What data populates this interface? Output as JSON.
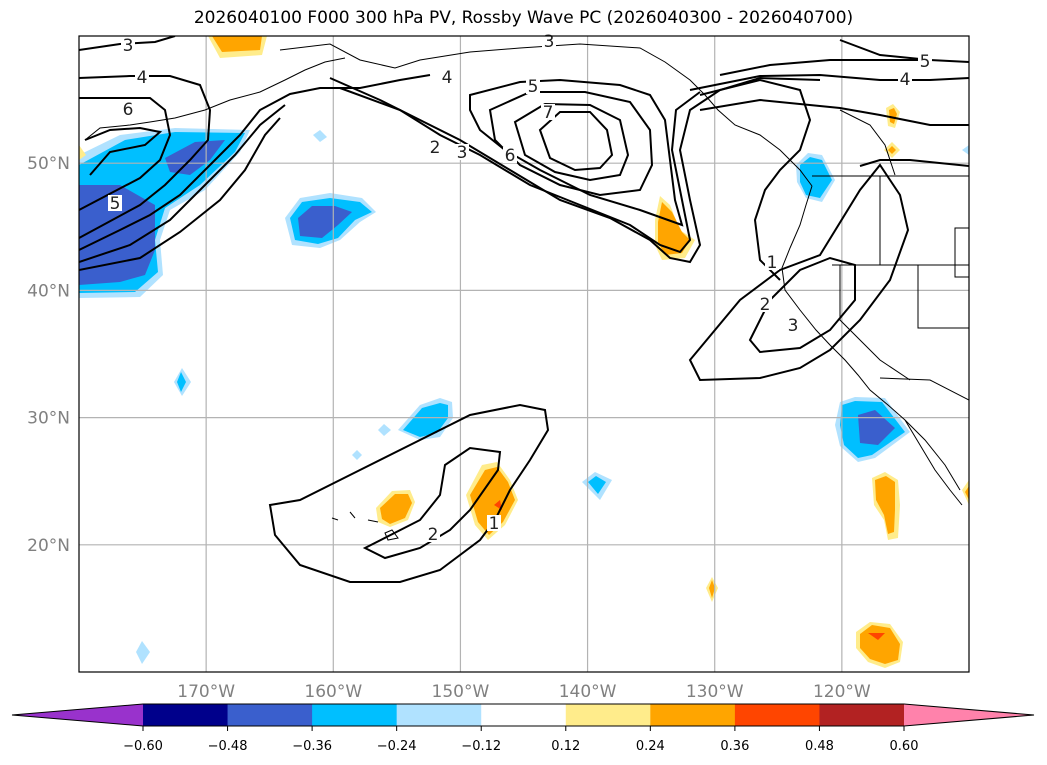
{
  "title": "2026040100 F000 300 hPa PV, Rossby Wave PC (2026040300 - 2026040700)",
  "chart_data": {
    "type": "heatmap",
    "title": "2026040100 F000 300 hPa PV, Rossby Wave PC (2026040300 - 2026040700)",
    "projection": "PlateCarree",
    "lon_range": [
      -180,
      -110
    ],
    "lat_range": [
      10,
      60
    ],
    "x_ticks": [
      {
        "value": -170,
        "label": "170°W"
      },
      {
        "value": -160,
        "label": "160°W"
      },
      {
        "value": -150,
        "label": "150°W"
      },
      {
        "value": -140,
        "label": "140°W"
      },
      {
        "value": -130,
        "label": "130°W"
      },
      {
        "value": -120,
        "label": "120°W"
      }
    ],
    "y_ticks": [
      {
        "value": 50,
        "label": "50°N"
      },
      {
        "value": 40,
        "label": "40°N"
      },
      {
        "value": 30,
        "label": "30°N"
      },
      {
        "value": 20,
        "label": "20°N"
      }
    ],
    "grid": true,
    "colorbar": {
      "orientation": "horizontal",
      "extend": "both",
      "levels": [
        -0.6,
        -0.48,
        -0.36,
        -0.24,
        -0.12,
        0.12,
        0.24,
        0.36,
        0.48,
        0.6
      ],
      "tick_labels": [
        "−0.60",
        "−0.48",
        "−0.36",
        "−0.24",
        "−0.12",
        "0.12",
        "0.24",
        "0.36",
        "0.48",
        "0.60"
      ],
      "colors": [
        "#9932cc",
        "#00008b",
        "#3a5fcd",
        "#00bfff",
        "#b0e2ff",
        "#ffffff",
        "#ffec8b",
        "#ffa500",
        "#ff4500",
        "#b22222",
        "#ff82ab"
      ]
    },
    "pv_contour_labels": [
      "3",
      "4",
      "6",
      "5",
      "4",
      "5",
      "7",
      "6",
      "2",
      "3",
      "3",
      "5",
      "4",
      "1",
      "2",
      "3",
      "1",
      "2"
    ],
    "pv_contour_levels": [
      1,
      2,
      3,
      4,
      5,
      6,
      7
    ],
    "anomaly_features": [
      {
        "name": "NW Pacific negative",
        "lon": -178,
        "lat": 46,
        "min_value": -0.48
      },
      {
        "name": "Aleutian negative band",
        "lon": -167,
        "lat": 51,
        "min_value": -0.48
      },
      {
        "name": "Central Pacific negative",
        "lon": -158,
        "lat": 45,
        "min_value": -0.48
      },
      {
        "name": "Gulf of Alaska positive",
        "lon": -134,
        "lat": 45,
        "max_value": 0.36
      },
      {
        "name": "Pacific NW negative",
        "lon": -122,
        "lat": 48,
        "min_value": -0.36
      },
      {
        "name": "Baja negative",
        "lon": -118,
        "lat": 29,
        "min_value": -0.48
      },
      {
        "name": "Hawaii positive west",
        "lon": -155,
        "lat": 23,
        "max_value": 0.36
      },
      {
        "name": "Hawaii positive east",
        "lon": -147,
        "lat": 23,
        "max_value": 0.48
      },
      {
        "name": "Subtropical negative",
        "lon": -152,
        "lat": 30,
        "min_value": -0.36
      },
      {
        "name": "Tropical positive",
        "lon": -117,
        "lat": 12,
        "max_value": 0.48
      }
    ]
  }
}
